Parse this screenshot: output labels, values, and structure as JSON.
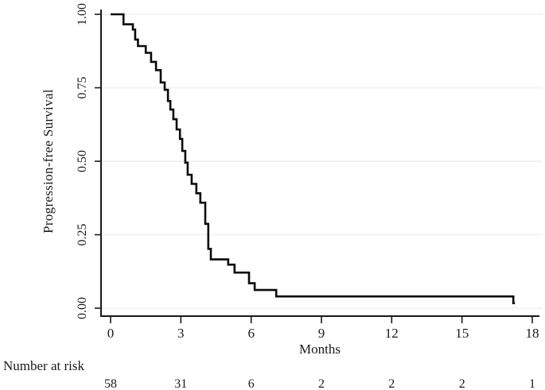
{
  "figure": {
    "background": "#ffffff",
    "text_color": "#1b1b1b",
    "curve_color": "#0a0a0a",
    "axis_color": "#1a1a1a",
    "grid_color": "#f3f3f3"
  },
  "chart_data": {
    "type": "line",
    "subtype": "kaplan-meier-step-curve",
    "title": "",
    "xlabel": "Months",
    "ylabel": "Progression-free Survival",
    "xlim": [
      0,
      18
    ],
    "ylim": [
      0.0,
      1.0
    ],
    "xticks": [
      0,
      3,
      6,
      9,
      12,
      15,
      18
    ],
    "ytick_labels": [
      "0.00",
      "0.25",
      "0.50",
      "0.75",
      "1.00"
    ],
    "grid": "horizontal-light",
    "legend": "none",
    "series": [
      {
        "name": "Progression-free Survival",
        "steps": [
          [
            0.0,
            1.0
          ],
          [
            0.55,
            0.966
          ],
          [
            0.95,
            0.948
          ],
          [
            1.05,
            0.914
          ],
          [
            1.17,
            0.892
          ],
          [
            1.5,
            0.869
          ],
          [
            1.73,
            0.838
          ],
          [
            1.94,
            0.81
          ],
          [
            2.14,
            0.768
          ],
          [
            2.31,
            0.743
          ],
          [
            2.45,
            0.705
          ],
          [
            2.55,
            0.676
          ],
          [
            2.68,
            0.643
          ],
          [
            2.82,
            0.608
          ],
          [
            2.96,
            0.576
          ],
          [
            3.06,
            0.535
          ],
          [
            3.19,
            0.495
          ],
          [
            3.29,
            0.454
          ],
          [
            3.46,
            0.423
          ],
          [
            3.66,
            0.391
          ],
          [
            3.83,
            0.359
          ],
          [
            4.04,
            0.287
          ],
          [
            4.17,
            0.202
          ],
          [
            4.28,
            0.166
          ],
          [
            5.02,
            0.148
          ],
          [
            5.29,
            0.121
          ],
          [
            5.91,
            0.085
          ],
          [
            6.15,
            0.062
          ],
          [
            7.07,
            0.04
          ],
          [
            17.19,
            0.017
          ]
        ]
      }
    ],
    "risk_table": {
      "label": "Number at risk",
      "times": [
        0,
        3,
        6,
        9,
        12,
        15,
        18
      ],
      "values": [
        58,
        31,
        6,
        2,
        2,
        2,
        1
      ]
    }
  }
}
